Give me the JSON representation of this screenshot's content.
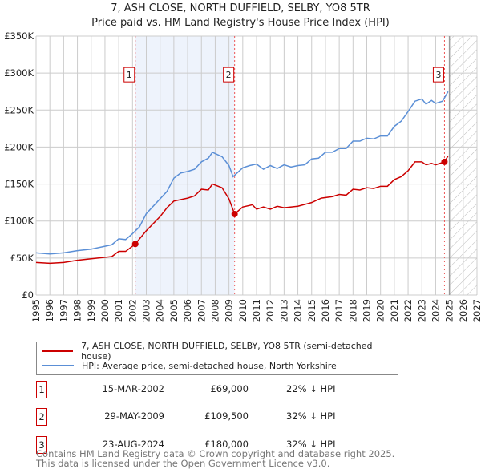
{
  "chart_data": {
    "type": "line",
    "title": "7, ASH CLOSE, NORTH DUFFIELD, SELBY, YO8 5TR",
    "subtitle": "Price paid vs. HM Land Registry's House Price Index (HPI)",
    "xlim": [
      1995,
      2027
    ],
    "ylim": [
      0,
      350000
    ],
    "xticks": [
      "1995",
      "1996",
      "1997",
      "1998",
      "1999",
      "2000",
      "2001",
      "2002",
      "2003",
      "2004",
      "2005",
      "2006",
      "2007",
      "2008",
      "2009",
      "2010",
      "2011",
      "2012",
      "2013",
      "2014",
      "2015",
      "2016",
      "2017",
      "2018",
      "2019",
      "2020",
      "2021",
      "2022",
      "2023",
      "2024",
      "2025",
      "2026",
      "2027"
    ],
    "yticks": [
      {
        "v": 0,
        "label": "£0"
      },
      {
        "v": 50000,
        "label": "£50K"
      },
      {
        "v": 100000,
        "label": "£100K"
      },
      {
        "v": 150000,
        "label": "£150K"
      },
      {
        "v": 200000,
        "label": "£200K"
      },
      {
        "v": 250000,
        "label": "£250K"
      },
      {
        "v": 300000,
        "label": "£300K"
      },
      {
        "v": 350000,
        "label": "£350K"
      }
    ],
    "grid": true,
    "shaded_range": [
      2002.2,
      2009.41
    ],
    "forecast_start": 2025.0,
    "series": [
      {
        "name": "7, ASH CLOSE, NORTH DUFFIELD, SELBY, YO8 5TR (semi-detached house)",
        "color": "#cc0000",
        "x": [
          1995,
          1996,
          1997,
          1998,
          1999,
          2000,
          2000.5,
          2001,
          2001.5,
          2002.2,
          2003,
          2004,
          2004.5,
          2005,
          2006,
          2006.5,
          2007,
          2007.5,
          2007.8,
          2008.5,
          2009,
          2009.41,
          2010,
          2010.7,
          2011,
          2011.5,
          2012,
          2012.5,
          2013,
          2014,
          2015,
          2015.7,
          2016.5,
          2017,
          2017.5,
          2018,
          2018.5,
          2019,
          2019.5,
          2020,
          2020.5,
          2021,
          2021.5,
          2022,
          2022.5,
          2023,
          2023.3,
          2023.7,
          2024,
          2024.64,
          2024.9
        ],
        "y": [
          44000,
          43000,
          44000,
          47000,
          49000,
          51000,
          52000,
          59000,
          59000,
          69000,
          87000,
          106000,
          118000,
          127000,
          131000,
          134000,
          143000,
          142000,
          150000,
          145000,
          130000,
          109500,
          119000,
          122000,
          116000,
          119000,
          116000,
          120000,
          118000,
          120000,
          125000,
          131000,
          133000,
          136000,
          135000,
          143000,
          142000,
          145000,
          144000,
          147000,
          147000,
          156000,
          160000,
          168000,
          180000,
          180000,
          176000,
          178000,
          176000,
          180000,
          188000
        ]
      },
      {
        "name": "HPI: Average price, semi-detached house, North Yorkshire",
        "color": "#5b8fd6",
        "x": [
          1995,
          1996,
          1997,
          1998,
          1999,
          2000,
          2000.5,
          2001,
          2001.5,
          2002,
          2002.5,
          2003,
          2004,
          2004.5,
          2005,
          2005.5,
          2006,
          2006.5,
          2007,
          2007.5,
          2007.8,
          2008.5,
          2009,
          2009.3,
          2010,
          2010.5,
          2011,
          2011.5,
          2012,
          2012.5,
          2013,
          2013.5,
          2014,
          2014.5,
          2015,
          2015.5,
          2016,
          2016.5,
          2017,
          2017.5,
          2018,
          2018.5,
          2019,
          2019.5,
          2020,
          2020.5,
          2021,
          2021.5,
          2022,
          2022.5,
          2023,
          2023.3,
          2023.7,
          2024,
          2024.5,
          2024.9
        ],
        "y": [
          57000,
          55500,
          57000,
          60000,
          62000,
          66000,
          68000,
          76000,
          75000,
          83000,
          92000,
          110000,
          130000,
          140000,
          158000,
          165000,
          167000,
          170000,
          180000,
          185000,
          193000,
          187000,
          175000,
          160000,
          172000,
          175000,
          177000,
          170000,
          175000,
          171000,
          176000,
          173000,
          175000,
          176000,
          184000,
          185000,
          193000,
          193000,
          198000,
          198000,
          208000,
          208000,
          212000,
          211000,
          215000,
          215000,
          228000,
          235000,
          248000,
          262000,
          265000,
          258000,
          263000,
          259000,
          262000,
          275000
        ]
      }
    ],
    "sales": [
      {
        "id": "1",
        "x": 2002.2,
        "y": 69000
      },
      {
        "id": "2",
        "x": 2009.41,
        "y": 109500
      },
      {
        "id": "3",
        "x": 2024.64,
        "y": 180000
      }
    ]
  },
  "legend": {
    "red": "7, ASH CLOSE, NORTH DUFFIELD, SELBY, YO8 5TR (semi-detached house)",
    "blue": "HPI: Average price, semi-detached house, North Yorkshire"
  },
  "sales_table": [
    {
      "num": "1",
      "date": "15-MAR-2002",
      "price": "£69,000",
      "hpi": "22% ↓ HPI"
    },
    {
      "num": "2",
      "date": "29-MAY-2009",
      "price": "£109,500",
      "hpi": "32% ↓ HPI"
    },
    {
      "num": "3",
      "date": "23-AUG-2024",
      "price": "£180,000",
      "hpi": "32% ↓ HPI"
    }
  ],
  "footer": {
    "line1": "Contains HM Land Registry data © Crown copyright and database right 2025.",
    "line2": "This data is licensed under the Open Government Licence v3.0."
  }
}
